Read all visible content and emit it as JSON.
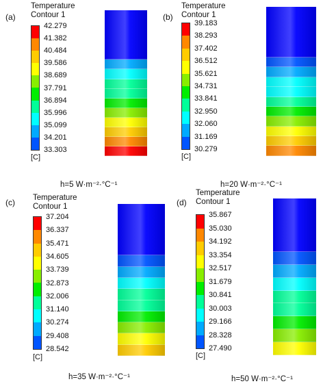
{
  "colors": {
    "scale": [
      "#0000ff",
      "#0055ff",
      "#00aaff",
      "#00ffff",
      "#00ff99",
      "#00ee00",
      "#88ee00",
      "#ffff00",
      "#ffcc00",
      "#ff8800",
      "#ff0000"
    ]
  },
  "chart_data": [
    {
      "type": "heatmap",
      "panel_label": "(a)",
      "legend_title_line1": "Temperature",
      "legend_title_line2": "Contour 1",
      "unit": "[C]",
      "caption": "h=5 W·m⁻²·°C⁻¹",
      "ticks": [
        "42.279",
        "41.382",
        "40.484",
        "39.586",
        "38.689",
        "37.791",
        "36.894",
        "35.996",
        "35.099",
        "34.201",
        "33.303"
      ],
      "range": [
        33.303,
        42.279
      ],
      "band_levels": [
        0,
        2,
        3,
        4,
        4,
        5,
        6,
        7,
        8,
        9,
        10
      ]
    },
    {
      "type": "heatmap",
      "panel_label": "(b)",
      "legend_title_line1": "Temperature",
      "legend_title_line2": "Contour 1",
      "unit": "[C]",
      "caption": "h=20 W·m⁻²·°C⁻¹",
      "ticks": [
        "39.183",
        "38.293",
        "37.402",
        "36.512",
        "35.621",
        "34.731",
        "33.841",
        "32.950",
        "32.060",
        "31.169",
        "30.279"
      ],
      "range": [
        30.279,
        39.183
      ],
      "band_levels": [
        0,
        1,
        2,
        3,
        3,
        4,
        5,
        6,
        7,
        8,
        9
      ]
    },
    {
      "type": "heatmap",
      "panel_label": "(c)",
      "legend_title_line1": "Temperature",
      "legend_title_line2": "Contour 1",
      "unit": "[C]",
      "caption": "h=35 W·m⁻²·°C⁻¹",
      "ticks": [
        "37.204",
        "36.337",
        "35.471",
        "34.605",
        "33.739",
        "32.873",
        "32.006",
        "31.140",
        "30.274",
        "29.408",
        "28.542"
      ],
      "range": [
        28.542,
        37.204
      ],
      "band_levels": [
        0,
        1,
        2,
        3,
        4,
        4,
        5,
        6,
        7,
        8
      ]
    },
    {
      "type": "heatmap",
      "panel_label": "(d)",
      "legend_title_line1": "Temperature",
      "legend_title_line2": "Contour 1",
      "unit": "[C]",
      "caption": "h=50 W·m⁻²·°C⁻¹",
      "ticks": [
        "35.867",
        "35.030",
        "34.192",
        "33.354",
        "32.517",
        "31.679",
        "30.841",
        "30.003",
        "29.166",
        "28.328",
        "27.490"
      ],
      "range": [
        27.49,
        35.867
      ],
      "band_levels": [
        0,
        1,
        2,
        3,
        4,
        4,
        5,
        6,
        7
      ]
    }
  ]
}
